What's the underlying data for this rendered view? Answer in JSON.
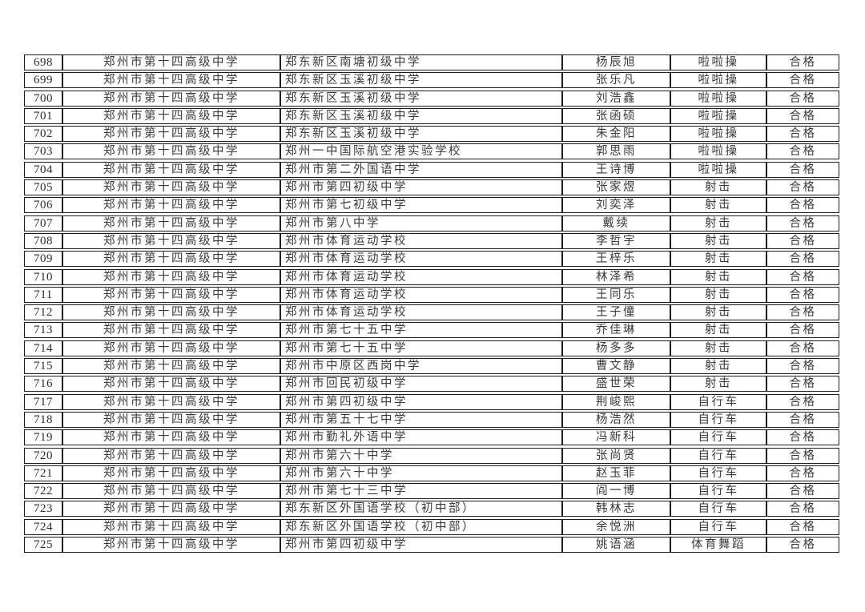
{
  "page": {
    "background_color": "#ffffff",
    "border_color": "#1d1d1d",
    "text_color": "#3a3a3a"
  },
  "table": {
    "columns": [
      {
        "key": "seq"
      },
      {
        "key": "high_school"
      },
      {
        "key": "middle_school"
      },
      {
        "key": "name"
      },
      {
        "key": "sport"
      },
      {
        "key": "result"
      }
    ],
    "rows": [
      {
        "seq": "698",
        "high_school": "郑州市第十四高级中学",
        "middle_school": "郑东新区南塘初级中学",
        "name": "杨辰旭",
        "sport": "啦啦操",
        "result": "合格"
      },
      {
        "seq": "699",
        "high_school": "郑州市第十四高级中学",
        "middle_school": "郑东新区玉溪初级中学",
        "name": "张乐凡",
        "sport": "啦啦操",
        "result": "合格"
      },
      {
        "seq": "700",
        "high_school": "郑州市第十四高级中学",
        "middle_school": "郑东新区玉溪初级中学",
        "name": "刘浩鑫",
        "sport": "啦啦操",
        "result": "合格"
      },
      {
        "seq": "701",
        "high_school": "郑州市第十四高级中学",
        "middle_school": "郑东新区玉溪初级中学",
        "name": "张函硕",
        "sport": "啦啦操",
        "result": "合格"
      },
      {
        "seq": "702",
        "high_school": "郑州市第十四高级中学",
        "middle_school": "郑东新区玉溪初级中学",
        "name": "朱金阳",
        "sport": "啦啦操",
        "result": "合格"
      },
      {
        "seq": "703",
        "high_school": "郑州市第十四高级中学",
        "middle_school": "郑州一中国际航空港实验学校",
        "name": "郭思雨",
        "sport": "啦啦操",
        "result": "合格"
      },
      {
        "seq": "704",
        "high_school": "郑州市第十四高级中学",
        "middle_school": "郑州市第二外国语中学",
        "name": "王诗博",
        "sport": "啦啦操",
        "result": "合格"
      },
      {
        "seq": "705",
        "high_school": "郑州市第十四高级中学",
        "middle_school": "郑州市第四初级中学",
        "name": "张家煜",
        "sport": "射击",
        "result": "合格"
      },
      {
        "seq": "706",
        "high_school": "郑州市第十四高级中学",
        "middle_school": "郑州市第七初级中学",
        "name": "刘奕泽",
        "sport": "射击",
        "result": "合格"
      },
      {
        "seq": "707",
        "high_school": "郑州市第十四高级中学",
        "middle_school": "郑州市第八中学",
        "name": "戴续",
        "sport": "射击",
        "result": "合格"
      },
      {
        "seq": "708",
        "high_school": "郑州市第十四高级中学",
        "middle_school": "郑州市体育运动学校",
        "name": "李哲宇",
        "sport": "射击",
        "result": "合格"
      },
      {
        "seq": "709",
        "high_school": "郑州市第十四高级中学",
        "middle_school": "郑州市体育运动学校",
        "name": "王梓乐",
        "sport": "射击",
        "result": "合格"
      },
      {
        "seq": "710",
        "high_school": "郑州市第十四高级中学",
        "middle_school": "郑州市体育运动学校",
        "name": "林泽希",
        "sport": "射击",
        "result": "合格"
      },
      {
        "seq": "711",
        "high_school": "郑州市第十四高级中学",
        "middle_school": "郑州市体育运动学校",
        "name": "王同乐",
        "sport": "射击",
        "result": "合格"
      },
      {
        "seq": "712",
        "high_school": "郑州市第十四高级中学",
        "middle_school": "郑州市体育运动学校",
        "name": "王子僮",
        "sport": "射击",
        "result": "合格"
      },
      {
        "seq": "713",
        "high_school": "郑州市第十四高级中学",
        "middle_school": "郑州市第七十五中学",
        "name": "乔佳琳",
        "sport": "射击",
        "result": "合格"
      },
      {
        "seq": "714",
        "high_school": "郑州市第十四高级中学",
        "middle_school": "郑州市第七十五中学",
        "name": "杨多多",
        "sport": "射击",
        "result": "合格"
      },
      {
        "seq": "715",
        "high_school": "郑州市第十四高级中学",
        "middle_school": "郑州市中原区西岗中学",
        "name": "曹文静",
        "sport": "射击",
        "result": "合格"
      },
      {
        "seq": "716",
        "high_school": "郑州市第十四高级中学",
        "middle_school": "郑州市回民初级中学",
        "name": "盛世荣",
        "sport": "射击",
        "result": "合格"
      },
      {
        "seq": "717",
        "high_school": "郑州市第十四高级中学",
        "middle_school": "郑州市第四初级中学",
        "name": "荆峻熙",
        "sport": "自行车",
        "result": "合格"
      },
      {
        "seq": "718",
        "high_school": "郑州市第十四高级中学",
        "middle_school": "郑州市第五十七中学",
        "name": "杨浩然",
        "sport": "自行车",
        "result": "合格"
      },
      {
        "seq": "719",
        "high_school": "郑州市第十四高级中学",
        "middle_school": "郑州市勤礼外语中学",
        "name": "冯新科",
        "sport": "自行车",
        "result": "合格"
      },
      {
        "seq": "720",
        "high_school": "郑州市第十四高级中学",
        "middle_school": "郑州市第六十中学",
        "name": "张尚贤",
        "sport": "自行车",
        "result": "合格"
      },
      {
        "seq": "721",
        "high_school": "郑州市第十四高级中学",
        "middle_school": "郑州市第六十中学",
        "name": "赵玉菲",
        "sport": "自行车",
        "result": "合格"
      },
      {
        "seq": "722",
        "high_school": "郑州市第十四高级中学",
        "middle_school": "郑州市第七十三中学",
        "name": "阎一博",
        "sport": "自行车",
        "result": "合格"
      },
      {
        "seq": "723",
        "high_school": "郑州市第十四高级中学",
        "middle_school": "郑东新区外国语学校（初中部）",
        "name": "韩林志",
        "sport": "自行车",
        "result": "合格"
      },
      {
        "seq": "724",
        "high_school": "郑州市第十四高级中学",
        "middle_school": "郑东新区外国语学校（初中部）",
        "name": "余悦洲",
        "sport": "自行车",
        "result": "合格"
      },
      {
        "seq": "725",
        "high_school": "郑州市第十四高级中学",
        "middle_school": "郑州市第四初级中学",
        "name": "姚语涵",
        "sport": "体育舞蹈",
        "result": "合格"
      }
    ]
  }
}
